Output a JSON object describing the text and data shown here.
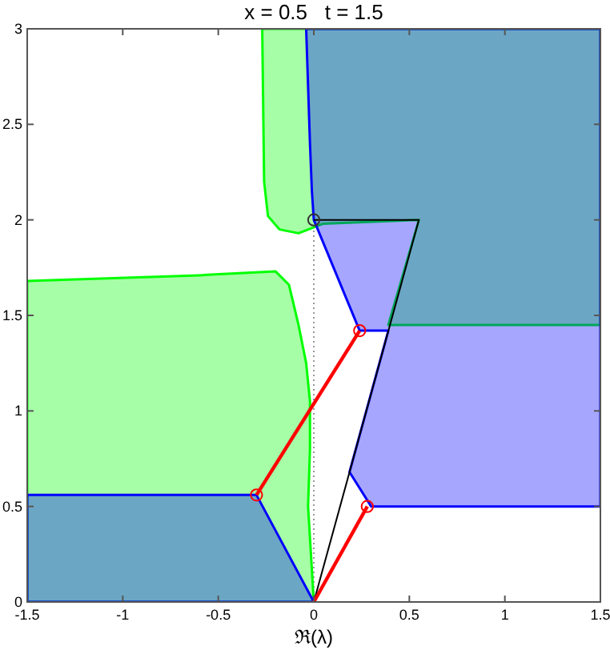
{
  "chart_data": {
    "type": "area",
    "title": "x = 0.5   t = 1.5",
    "xlabel": "ℜ(λ)",
    "xlim": [
      -1.5,
      1.5
    ],
    "ylim": [
      0,
      3
    ],
    "xticks": [
      -1.5,
      -1,
      -0.5,
      0,
      0.5,
      1,
      1.5
    ],
    "yticks": [
      0,
      0.5,
      1,
      1.5,
      2,
      2.5,
      3
    ],
    "grid": false,
    "ref_lines": [
      {
        "axis": "x",
        "value": 0,
        "line_style": "dotted",
        "color": "#999999"
      }
    ],
    "series": [
      {
        "color": "#00ff00",
        "x": [
          -1.5,
          -0.6,
          -0.2,
          -0.13,
          -0.08,
          -0.04,
          -0.02,
          -0.02,
          -0.03,
          0,
          -1.5
        ],
        "values": [
          1.68,
          1.71,
          1.73,
          1.66,
          1.45,
          1.25,
          1.05,
          0.8,
          0.5,
          0,
          0
        ]
      },
      {
        "color": "#00ff00",
        "x": [
          -0.27,
          -0.26,
          -0.24,
          -0.18,
          -0.08,
          0.05,
          0.55,
          0.39,
          1.5,
          1.5
        ],
        "values": [
          3,
          2.2,
          2.02,
          1.95,
          1.93,
          1.98,
          2,
          1.45,
          1.45,
          3
        ]
      },
      {
        "color": "#0000ff",
        "x": [
          -1.5,
          0,
          -0.3,
          -1.5
        ],
        "values": [
          0,
          0,
          0.56,
          0.56
        ]
      },
      {
        "color": "#0000ff",
        "x": [
          -0.04,
          -0.03,
          -0.02,
          -0.01,
          0,
          0.24,
          0.39,
          0.187,
          0.3,
          1.5,
          1.5
        ],
        "values": [
          3,
          2.7,
          2.4,
          2.15,
          2,
          1.42,
          1.42,
          0.68,
          0.5,
          0.5,
          3
        ]
      },
      {
        "type": "line",
        "color": "#000000",
        "x": [
          0,
          0.55,
          0
        ],
        "values": [
          0,
          2,
          2
        ]
      },
      {
        "type": "line",
        "color": "#ff0000",
        "x": [
          -0.3,
          0.24
        ],
        "values": [
          0.56,
          1.42
        ]
      },
      {
        "type": "line",
        "color": "#ff0000",
        "x": [
          0,
          0.28
        ],
        "values": [
          0,
          0.5
        ]
      },
      {
        "type": "scatter",
        "color": "#ff0000",
        "marker": "circle",
        "x": [
          -0.3,
          0.24,
          0.28
        ],
        "values": [
          0.56,
          1.42,
          0.5
        ]
      },
      {
        "type": "scatter",
        "color": "#333333",
        "marker": "circle",
        "x": [
          0
        ],
        "values": [
          2
        ]
      }
    ]
  }
}
